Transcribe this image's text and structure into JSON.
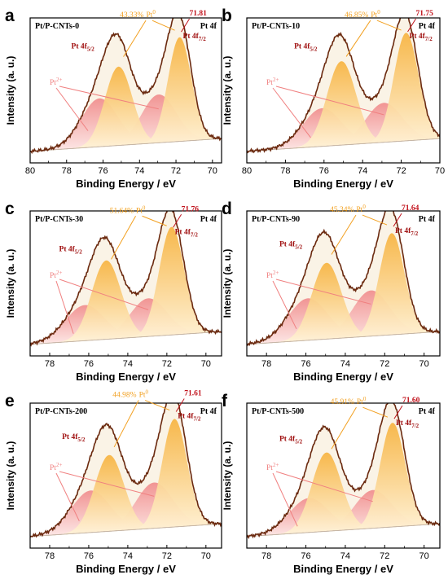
{
  "colors": {
    "pt0_fill": "#f7b544",
    "pt2_fill": "#f08a8a",
    "envelope": "#e9dcc0",
    "raw": "#6b2a10",
    "peak_label": "#c0101a",
    "pct_label": "#f2a020",
    "pt2_label": "#f08080"
  },
  "chart_data": [
    {
      "type": "line",
      "panel": "a",
      "title": "Pt/P-CNTs-0",
      "region": "Pt 4f",
      "xlabel": "Binding Energy / eV",
      "ylabel": "Intensity (a. u.)",
      "xlim": [
        80,
        69.5
      ],
      "xticks": [
        80,
        78,
        76,
        74,
        72,
        70
      ],
      "peak_value": "71.81",
      "pt0_pct": "43.33%",
      "pt0_label": "Pt",
      "pt0_sup": "0",
      "pt_left_label": "Pt 4f",
      "pt_left_sub": "5/2",
      "pt_right_label": "Pt 4f",
      "pt_right_sub": "7/2",
      "pt2_label": "Pt",
      "pt2_sup": "2+",
      "pt0_peaks": [
        75.15,
        71.8
      ],
      "pt2_peaks": [
        76.2,
        72.95
      ],
      "pt0_heights": [
        0.62,
        0.82
      ],
      "pt2_heights": [
        0.38,
        0.38
      ]
    },
    {
      "type": "line",
      "panel": "b",
      "title": "Pt/P-CNTs-10",
      "region": "Pt 4f",
      "xlabel": "Binding Energy / eV",
      "ylabel": "Intensity (a. u.)",
      "xlim": [
        80,
        70
      ],
      "xticks": [
        80,
        78,
        76,
        74,
        72,
        70
      ],
      "peak_value": "71.75",
      "pt0_pct": "46.85%",
      "pt0_label": "Pt",
      "pt0_sup": "0",
      "pt_left_label": "Pt 4f",
      "pt_left_sub": "5/2",
      "pt_right_label": "Pt 4f",
      "pt_right_sub": "7/2",
      "pt2_label": "Pt",
      "pt2_sup": "2+",
      "pt0_peaks": [
        75.1,
        71.75
      ],
      "pt2_peaks": [
        76.1,
        72.9
      ],
      "pt0_heights": [
        0.66,
        0.85
      ],
      "pt2_heights": [
        0.3,
        0.31
      ]
    },
    {
      "type": "line",
      "panel": "c",
      "title": "Pt/P-CNTs-30",
      "region": "Pt 4f",
      "xlabel": "Binding Energy / eV",
      "ylabel": "Intensity (a. u.)",
      "xlim": [
        79,
        69.2
      ],
      "xticks": [
        78,
        76,
        74,
        72,
        70
      ],
      "peak_value": "71.76",
      "pt0_pct": "51.64%",
      "pt0_label": "Pt",
      "pt0_sup": "0",
      "pt_left_label": "Pt 4f",
      "pt_left_sub": "5/2",
      "pt_right_label": "Pt 4f",
      "pt_right_sub": "7/2",
      "pt2_label": "Pt",
      "pt2_sup": "2+",
      "pt0_peaks": [
        75.1,
        71.76
      ],
      "pt2_peaks": [
        76.2,
        72.95
      ],
      "pt0_heights": [
        0.62,
        0.85
      ],
      "pt2_heights": [
        0.28,
        0.3
      ]
    },
    {
      "type": "line",
      "panel": "d",
      "title": "Pt/P-CNTs-90",
      "region": "Pt 4f",
      "xlabel": "Binding Energy / eV",
      "ylabel": "Intensity (a. u.)",
      "xlim": [
        79,
        69.2
      ],
      "xticks": [
        78,
        76,
        74,
        72,
        70
      ],
      "peak_value": "71.64",
      "pt0_pct": "45.34%",
      "pt0_label": "Pt",
      "pt0_sup": "0",
      "pt_left_label": "Pt 4f",
      "pt_left_sub": "5/2",
      "pt_right_label": "Pt 4f",
      "pt_right_sub": "7/2",
      "pt2_label": "Pt",
      "pt2_sup": "2+",
      "pt0_peaks": [
        74.95,
        71.64
      ],
      "pt2_peaks": [
        75.9,
        72.7
      ],
      "pt0_heights": [
        0.6,
        0.8
      ],
      "pt2_heights": [
        0.33,
        0.36
      ]
    },
    {
      "type": "line",
      "panel": "e",
      "title": "Pt/P-CNTs-200",
      "region": "Pt 4f",
      "xlabel": "Binding Energy / eV",
      "ylabel": "Intensity (a. u.)",
      "xlim": [
        79,
        69.2
      ],
      "xticks": [
        78,
        76,
        74,
        72,
        70
      ],
      "peak_value": "71.61",
      "pt0_pct": "44.98%",
      "pt0_label": "Pt",
      "pt0_sup": "0",
      "pt_left_label": "Pt 4f",
      "pt_left_sub": "5/2",
      "pt_right_label": "Pt 4f",
      "pt_right_sub": "7/2",
      "pt2_label": "Pt",
      "pt2_sup": "2+",
      "pt0_peaks": [
        74.95,
        71.61
      ],
      "pt2_peaks": [
        75.9,
        72.65
      ],
      "pt0_heights": [
        0.6,
        0.85
      ],
      "pt2_heights": [
        0.33,
        0.36
      ]
    },
    {
      "type": "line",
      "panel": "f",
      "title": "Pt/P-CNTs-500",
      "region": "Pt 4f",
      "xlabel": "Binding Energy / eV",
      "ylabel": "Intensity (a. u.)",
      "xlim": [
        79,
        69.2
      ],
      "xticks": [
        78,
        76,
        74,
        72,
        70
      ],
      "peak_value": "71.60",
      "pt0_pct": "45.91%",
      "pt0_label": "Pt",
      "pt0_sup": "0",
      "pt_left_label": "Pt 4f",
      "pt_left_sub": "5/2",
      "pt_right_label": "Pt 4f",
      "pt_right_sub": "7/2",
      "pt2_label": "Pt",
      "pt2_sup": "2+",
      "pt0_peaks": [
        74.95,
        71.6
      ],
      "pt2_peaks": [
        75.85,
        72.6
      ],
      "pt0_heights": [
        0.62,
        0.82
      ],
      "pt2_heights": [
        0.27,
        0.3
      ]
    }
  ]
}
